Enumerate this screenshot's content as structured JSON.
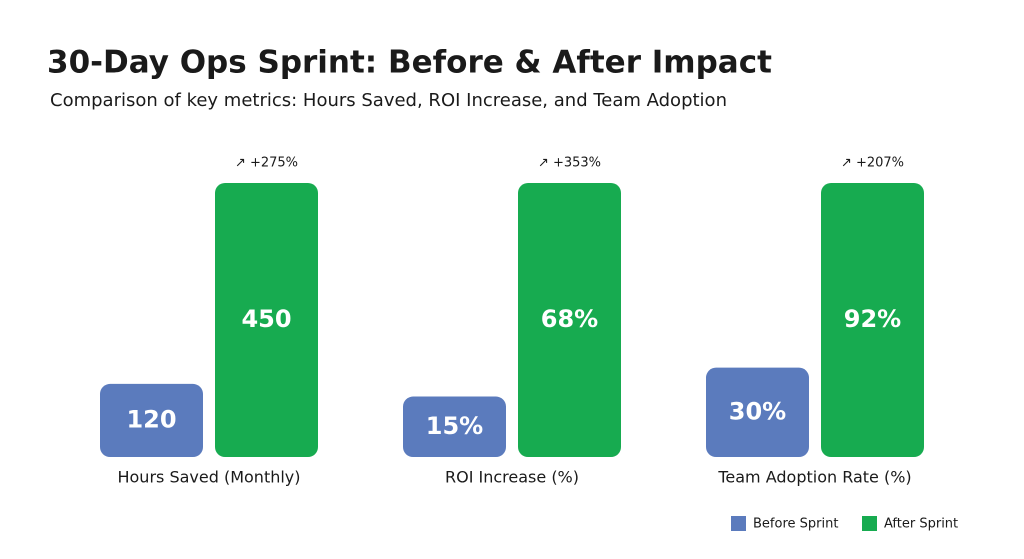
{
  "chart_data": {
    "type": "bar",
    "title": "30-Day Ops Sprint: Before & After Impact",
    "subtitle": "Comparison of key metrics: Hours Saved, ROI Increase, and Team Adoption",
    "categories": [
      "Hours Saved (Monthly)",
      "ROI Increase (%)",
      "Team Adoption Rate (%)"
    ],
    "series": [
      {
        "name": "Before Sprint",
        "color": "#5b7bbd",
        "values": [
          120,
          15,
          30
        ],
        "value_labels": [
          "120",
          "15%",
          "30%"
        ]
      },
      {
        "name": "After Sprint",
        "color": "#17ab50",
        "values": [
          450,
          68,
          92
        ],
        "value_labels": [
          "450",
          "68%",
          "92%"
        ]
      }
    ],
    "annotations": [
      "↗ +275%",
      "↗ +353%",
      "↗ +207%"
    ],
    "legend": "bottom-right"
  }
}
